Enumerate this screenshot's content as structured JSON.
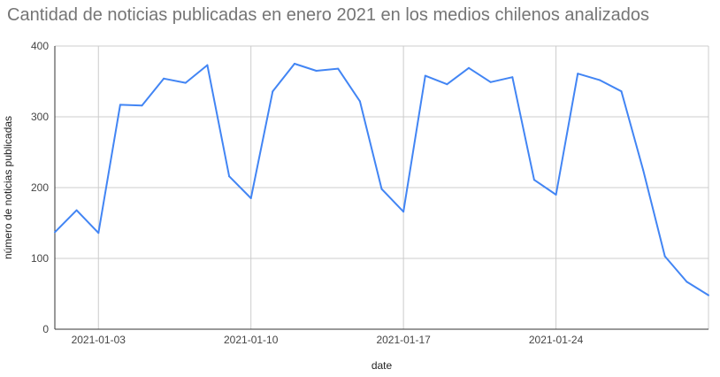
{
  "chart_data": {
    "type": "line",
    "title": "Cantidad de noticias publicadas en enero 2021 en los medios chilenos analizados",
    "xlabel": "date",
    "ylabel": "número de noticias publicadas",
    "ylim": [
      0,
      400
    ],
    "yticks": [
      "0",
      "100",
      "200",
      "300",
      "400"
    ],
    "xticks": [
      "2021-01-03",
      "2021-01-10",
      "2021-01-17",
      "2021-01-24"
    ],
    "grid": true,
    "legend": "none",
    "x": [
      "2021-01-01",
      "2021-01-02",
      "2021-01-03",
      "2021-01-04",
      "2021-01-05",
      "2021-01-06",
      "2021-01-07",
      "2021-01-08",
      "2021-01-09",
      "2021-01-10",
      "2021-01-11",
      "2021-01-12",
      "2021-01-13",
      "2021-01-14",
      "2021-01-15",
      "2021-01-16",
      "2021-01-17",
      "2021-01-18",
      "2021-01-19",
      "2021-01-20",
      "2021-01-21",
      "2021-01-22",
      "2021-01-23",
      "2021-01-24",
      "2021-01-25",
      "2021-01-26",
      "2021-01-27",
      "2021-01-28",
      "2021-01-29",
      "2021-01-30",
      "2021-01-31"
    ],
    "series": [
      {
        "color": "#4285f4",
        "values": [
          137,
          168,
          136,
          317,
          316,
          354,
          348,
          373,
          216,
          185,
          336,
          375,
          365,
          368,
          322,
          198,
          166,
          358,
          346,
          369,
          349,
          356,
          211,
          190,
          361,
          352,
          336,
          225,
          103,
          67,
          48
        ]
      }
    ]
  }
}
